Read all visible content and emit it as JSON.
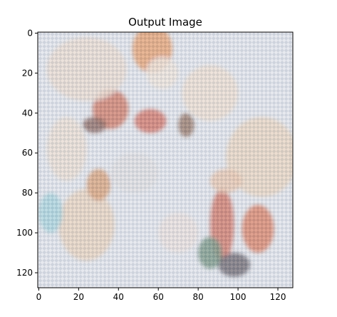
{
  "chart_data": {
    "type": "heatmap",
    "title": "Output Image",
    "xlabel": "",
    "ylabel": "",
    "image_size": [
      128,
      128
    ],
    "xlim": [
      -0.5,
      127.5
    ],
    "ylim": [
      127.5,
      -0.5
    ],
    "xticks": [
      0,
      20,
      40,
      60,
      80,
      100,
      120
    ],
    "yticks": [
      0,
      20,
      40,
      60,
      80,
      100,
      120
    ],
    "grid": false,
    "description_colors": {
      "background": "#dfe3ea",
      "checker_light": "#f1f0f4",
      "checker_dark": "#b9c0cc",
      "warm": "#e8c9a8",
      "orange": "#e8892f",
      "red": "#b5301d",
      "dark": "#3a2a28"
    },
    "blobs": [
      {
        "x": 57,
        "y": 8,
        "rx": 10,
        "ry": 12,
        "color": "#e47a30"
      },
      {
        "x": 36,
        "y": 38,
        "rx": 9,
        "ry": 10,
        "color": "#c13e1c"
      },
      {
        "x": 28,
        "y": 46,
        "rx": 6,
        "ry": 4,
        "color": "#5a2418"
      },
      {
        "x": 56,
        "y": 44,
        "rx": 8,
        "ry": 6,
        "color": "#c4361d"
      },
      {
        "x": 74,
        "y": 46,
        "rx": 4,
        "ry": 6,
        "color": "#6a3b1c"
      },
      {
        "x": 86,
        "y": 30,
        "rx": 14,
        "ry": 14,
        "color": "#efd7bf"
      },
      {
        "x": 24,
        "y": 18,
        "rx": 20,
        "ry": 16,
        "color": "#ead4c0"
      },
      {
        "x": 112,
        "y": 62,
        "rx": 18,
        "ry": 20,
        "color": "#e9caa8"
      },
      {
        "x": 110,
        "y": 98,
        "rx": 8,
        "ry": 12,
        "color": "#d04b1f"
      },
      {
        "x": 92,
        "y": 96,
        "rx": 6,
        "ry": 18,
        "color": "#c2381c"
      },
      {
        "x": 86,
        "y": 110,
        "rx": 6,
        "ry": 8,
        "color": "#3d6a4e"
      },
      {
        "x": 98,
        "y": 116,
        "rx": 8,
        "ry": 6,
        "color": "#2d2430"
      },
      {
        "x": 24,
        "y": 96,
        "rx": 14,
        "ry": 18,
        "color": "#e8c7a4"
      },
      {
        "x": 6,
        "y": 90,
        "rx": 6,
        "ry": 10,
        "color": "#86c8d2"
      },
      {
        "x": 14,
        "y": 58,
        "rx": 10,
        "ry": 16,
        "color": "#ebd7c3"
      },
      {
        "x": 62,
        "y": 20,
        "rx": 8,
        "ry": 8,
        "color": "#f0e1cf"
      },
      {
        "x": 30,
        "y": 76,
        "rx": 6,
        "ry": 8,
        "color": "#cf7b3c"
      },
      {
        "x": 70,
        "y": 100,
        "rx": 10,
        "ry": 10,
        "color": "#eadbd3"
      },
      {
        "x": 48,
        "y": 70,
        "rx": 12,
        "ry": 10,
        "color": "#dcd9d9"
      },
      {
        "x": 94,
        "y": 74,
        "rx": 8,
        "ry": 6,
        "color": "#e6b38d"
      }
    ]
  }
}
